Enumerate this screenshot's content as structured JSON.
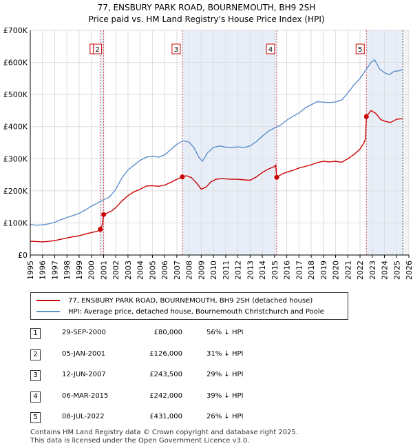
{
  "title": "77, ENSBURY PARK ROAD, BOURNEMOUTH, BH9 2SH",
  "subtitle": "Price paid vs. HM Land Registry's House Price Index (HPI)",
  "chart_data": {
    "type": "line",
    "x_range": [
      1995,
      2026
    ],
    "ylim": [
      0,
      700000
    ],
    "y_ticks": [
      {
        "value": 0,
        "label": "£0"
      },
      {
        "value": 100000,
        "label": "£100K"
      },
      {
        "value": 200000,
        "label": "£200K"
      },
      {
        "value": 300000,
        "label": "£300K"
      },
      {
        "value": 400000,
        "label": "£400K"
      },
      {
        "value": 500000,
        "label": "£500K"
      },
      {
        "value": 600000,
        "label": "£600K"
      },
      {
        "value": 700000,
        "label": "£700K"
      }
    ],
    "x_ticks": [
      "1995",
      "1996",
      "1997",
      "1998",
      "1999",
      "2000",
      "2001",
      "2002",
      "2003",
      "2004",
      "2005",
      "2006",
      "2007",
      "2008",
      "2009",
      "2010",
      "2011",
      "2012",
      "2013",
      "2014",
      "2015",
      "2016",
      "2017",
      "2018",
      "2019",
      "2020",
      "2021",
      "2022",
      "2023",
      "2024",
      "2025",
      "2026"
    ],
    "grid": true,
    "colors": {
      "property": "#cc0000",
      "hpi": "#5b8fcc",
      "shade": "#e8eef8",
      "vline": "#cc0000",
      "grid": "#dddddd"
    },
    "shaded_regions": [
      [
        2000.75,
        2001.01
      ],
      [
        2007.45,
        2015.18
      ],
      [
        2022.52,
        2025.5
      ]
    ],
    "forecast_start": 2025.5,
    "series": [
      {
        "name": "77, ENSBURY PARK ROAD, BOURNEMOUTH, BH9 2SH (detached house)",
        "color": "#cc0000",
        "points": [
          [
            1995,
            43000
          ],
          [
            1995.5,
            42000
          ],
          [
            1996,
            41000
          ],
          [
            1996.5,
            42500
          ],
          [
            1997,
            45000
          ],
          [
            1997.5,
            49000
          ],
          [
            1998,
            53000
          ],
          [
            1998.5,
            57000
          ],
          [
            1999,
            60000
          ],
          [
            1999.5,
            65000
          ],
          [
            2000,
            70000
          ],
          [
            2000.5,
            74000
          ],
          [
            2000.74,
            80000
          ],
          [
            2000.75,
            80000
          ],
          [
            2000.9,
            95000
          ],
          [
            2001.01,
            126000
          ],
          [
            2001.3,
            131000
          ],
          [
            2001.7,
            138000
          ],
          [
            2002,
            148000
          ],
          [
            2002.5,
            168000
          ],
          [
            2003,
            185000
          ],
          [
            2003.5,
            197000
          ],
          [
            2004,
            205000
          ],
          [
            2004.5,
            215000
          ],
          [
            2005,
            216000
          ],
          [
            2005.5,
            214000
          ],
          [
            2006,
            218000
          ],
          [
            2006.5,
            226000
          ],
          [
            2007,
            236000
          ],
          [
            2007.45,
            243500
          ],
          [
            2007.8,
            247000
          ],
          [
            2008.2,
            241000
          ],
          [
            2008.6,
            225000
          ],
          [
            2009,
            205000
          ],
          [
            2009.4,
            212000
          ],
          [
            2009.8,
            228000
          ],
          [
            2010.2,
            236000
          ],
          [
            2010.7,
            238000
          ],
          [
            2011,
            237000
          ],
          [
            2011.5,
            236000
          ],
          [
            2012,
            236000
          ],
          [
            2012.5,
            234000
          ],
          [
            2013,
            233000
          ],
          [
            2013.5,
            243000
          ],
          [
            2014,
            257000
          ],
          [
            2014.5,
            268000
          ],
          [
            2015,
            276000
          ],
          [
            2015.1,
            280000
          ],
          [
            2015.18,
            242000
          ],
          [
            2015.6,
            252000
          ],
          [
            2016,
            258000
          ],
          [
            2016.5,
            264000
          ],
          [
            2017,
            271000
          ],
          [
            2017.5,
            276000
          ],
          [
            2018,
            281000
          ],
          [
            2018.5,
            288000
          ],
          [
            2019,
            292000
          ],
          [
            2019.5,
            290000
          ],
          [
            2020,
            292000
          ],
          [
            2020.5,
            289000
          ],
          [
            2021,
            300000
          ],
          [
            2021.5,
            313000
          ],
          [
            2022,
            330000
          ],
          [
            2022.3,
            348000
          ],
          [
            2022.45,
            362000
          ],
          [
            2022.52,
            431000
          ],
          [
            2022.9,
            450000
          ],
          [
            2023.3,
            441000
          ],
          [
            2023.7,
            422000
          ],
          [
            2024.1,
            416000
          ],
          [
            2024.5,
            413000
          ],
          [
            2025,
            423000
          ],
          [
            2025.5,
            425000
          ]
        ]
      },
      {
        "name": "HPI: Average price, detached house, Bournemouth Christchurch and Poole",
        "color": "#5b8fcc",
        "points": [
          [
            1995,
            95000
          ],
          [
            1995.5,
            93000
          ],
          [
            1996,
            94000
          ],
          [
            1996.5,
            97000
          ],
          [
            1997,
            102000
          ],
          [
            1997.5,
            110000
          ],
          [
            1998,
            117000
          ],
          [
            1998.5,
            123000
          ],
          [
            1999,
            130000
          ],
          [
            1999.5,
            140000
          ],
          [
            2000,
            152000
          ],
          [
            2000.5,
            162000
          ],
          [
            2001,
            172000
          ],
          [
            2001.5,
            181000
          ],
          [
            2002,
            205000
          ],
          [
            2002.5,
            240000
          ],
          [
            2003,
            265000
          ],
          [
            2003.5,
            280000
          ],
          [
            2004,
            295000
          ],
          [
            2004.5,
            305000
          ],
          [
            2005,
            308000
          ],
          [
            2005.5,
            305000
          ],
          [
            2006,
            312000
          ],
          [
            2006.5,
            328000
          ],
          [
            2007,
            345000
          ],
          [
            2007.5,
            356000
          ],
          [
            2008,
            352000
          ],
          [
            2008.4,
            335000
          ],
          [
            2008.8,
            305000
          ],
          [
            2009.1,
            292000
          ],
          [
            2009.5,
            318000
          ],
          [
            2010,
            335000
          ],
          [
            2010.5,
            340000
          ],
          [
            2011,
            336000
          ],
          [
            2011.5,
            335000
          ],
          [
            2012,
            337000
          ],
          [
            2012.5,
            335000
          ],
          [
            2013,
            340000
          ],
          [
            2013.5,
            353000
          ],
          [
            2014,
            370000
          ],
          [
            2014.5,
            386000
          ],
          [
            2015,
            396000
          ],
          [
            2015.5,
            405000
          ],
          [
            2016,
            420000
          ],
          [
            2016.5,
            432000
          ],
          [
            2017,
            442000
          ],
          [
            2017.5,
            458000
          ],
          [
            2018,
            468000
          ],
          [
            2018.5,
            478000
          ],
          [
            2019,
            476000
          ],
          [
            2019.5,
            475000
          ],
          [
            2020,
            477000
          ],
          [
            2020.5,
            483000
          ],
          [
            2021,
            505000
          ],
          [
            2021.5,
            530000
          ],
          [
            2022,
            550000
          ],
          [
            2022.5,
            578000
          ],
          [
            2022.9,
            600000
          ],
          [
            2023.2,
            608000
          ],
          [
            2023.6,
            580000
          ],
          [
            2024,
            568000
          ],
          [
            2024.4,
            562000
          ],
          [
            2024.8,
            572000
          ],
          [
            2025.2,
            574000
          ],
          [
            2025.5,
            578000
          ]
        ]
      }
    ],
    "transactions": [
      {
        "num": "1",
        "x": 2000.74,
        "price": 80000
      },
      {
        "num": "2",
        "x": 2001.01,
        "price": 126000
      },
      {
        "num": "3",
        "x": 2007.45,
        "price": 243500
      },
      {
        "num": "4",
        "x": 2015.18,
        "price": 242000
      },
      {
        "num": "5",
        "x": 2022.52,
        "price": 431000
      }
    ]
  },
  "legend": {
    "property": "77, ENSBURY PARK ROAD, BOURNEMOUTH, BH9 2SH (detached house)",
    "hpi": "HPI: Average price, detached house, Bournemouth Christchurch and Poole"
  },
  "table": [
    {
      "num": "1",
      "date": "29-SEP-2000",
      "price": "£80,000",
      "hpi": "56% ↓ HPI"
    },
    {
      "num": "2",
      "date": "05-JAN-2001",
      "price": "£126,000",
      "hpi": "31% ↓ HPI"
    },
    {
      "num": "3",
      "date": "12-JUN-2007",
      "price": "£243,500",
      "hpi": "29% ↓ HPI"
    },
    {
      "num": "4",
      "date": "06-MAR-2015",
      "price": "£242,000",
      "hpi": "39% ↓ HPI"
    },
    {
      "num": "5",
      "date": "08-JUL-2022",
      "price": "£431,000",
      "hpi": "26% ↓ HPI"
    }
  ],
  "footer": {
    "line1": "Contains HM Land Registry data © Crown copyright and database right 2025.",
    "line2": "This data is licensed under the Open Government Licence v3.0."
  }
}
